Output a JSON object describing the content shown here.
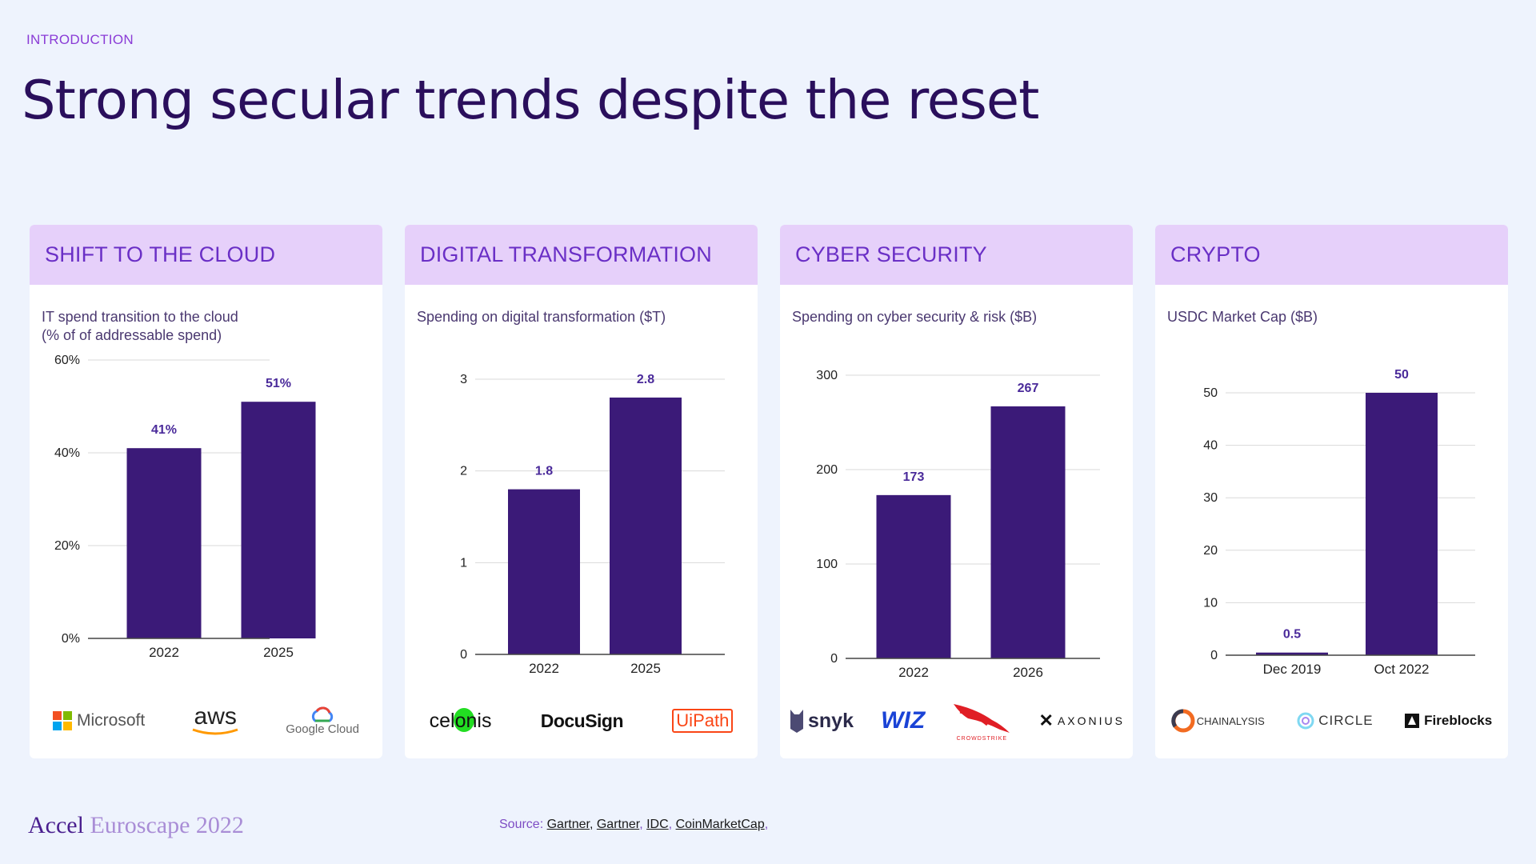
{
  "eyebrow": "INTRODUCTION",
  "title": "Strong secular trends despite the reset",
  "colors": {
    "bar": "#3B1A78",
    "card_header_bg": "#E6D0FA",
    "card_header_text": "#6A2FC6",
    "page_bg": "#EEF3FD",
    "value_label": "#4A2A9A"
  },
  "cards": [
    {
      "header": "SHIFT TO THE CLOUD",
      "subtitle": "IT spend transition to the cloud\n(% of of addressable spend)",
      "logos": [
        "Microsoft",
        "aws",
        "Google Cloud"
      ]
    },
    {
      "header": "DIGITAL TRANSFORMATION",
      "subtitle": "Spending on digital transformation ($T)",
      "logos": [
        "celonis",
        "DocuSign",
        "UiPath"
      ]
    },
    {
      "header": "CYBER SECURITY",
      "subtitle": "Spending on cyber security & risk ($B)",
      "logos": [
        "snyk",
        "WIZ",
        "CROWDSTRIKE",
        "AXONIUS"
      ]
    },
    {
      "header": "CRYPTO",
      "subtitle": "USDC Market Cap ($B)",
      "logos": [
        "CHAINALYSIS",
        "CIRCLE",
        "Fireblocks"
      ]
    }
  ],
  "chart_data": [
    {
      "type": "bar",
      "title": "IT spend transition to the cloud (% of of addressable spend)",
      "categories": [
        "2022",
        "2025"
      ],
      "values": [
        41,
        51
      ],
      "value_labels": [
        "41%",
        "51%"
      ],
      "yticks": [
        0,
        20,
        40,
        60
      ],
      "ytick_labels": [
        "0%",
        "20%",
        "40%",
        "60%"
      ],
      "ylim": [
        0,
        60
      ],
      "grid": true
    },
    {
      "type": "bar",
      "title": "Spending on digital transformation ($T)",
      "categories": [
        "2022",
        "2025"
      ],
      "values": [
        1.8,
        2.8
      ],
      "value_labels": [
        "1.8",
        "2.8"
      ],
      "yticks": [
        0,
        1,
        2,
        3
      ],
      "ytick_labels": [
        "0",
        "1",
        "2",
        "3"
      ],
      "ylim": [
        0,
        3
      ],
      "grid": true
    },
    {
      "type": "bar",
      "title": "Spending on cyber security & risk ($B)",
      "categories": [
        "2022",
        "2026"
      ],
      "values": [
        173,
        267
      ],
      "value_labels": [
        "173",
        "267"
      ],
      "yticks": [
        0,
        100,
        200,
        300
      ],
      "ytick_labels": [
        "0",
        "100",
        "200",
        "300"
      ],
      "ylim": [
        0,
        300
      ],
      "grid": true
    },
    {
      "type": "bar",
      "title": "USDC Market Cap ($B)",
      "categories": [
        "Dec 2019",
        "Oct 2022"
      ],
      "values": [
        0.5,
        50
      ],
      "value_labels": [
        "0.5",
        "50"
      ],
      "yticks": [
        0,
        10,
        20,
        30,
        40,
        50
      ],
      "ytick_labels": [
        "0",
        "10",
        "20",
        "30",
        "40",
        "50"
      ],
      "ylim": [
        0,
        50
      ],
      "grid": true
    }
  ],
  "footer": {
    "brand_primary": "Accel",
    "brand_secondary": "Euroscape 2022",
    "source_prefix": "Source: ",
    "sources": [
      "Gartner,",
      "Gartner",
      "IDC",
      "CoinMarketCap"
    ],
    "separators": [
      " ",
      ", ",
      ", ",
      ","
    ]
  }
}
